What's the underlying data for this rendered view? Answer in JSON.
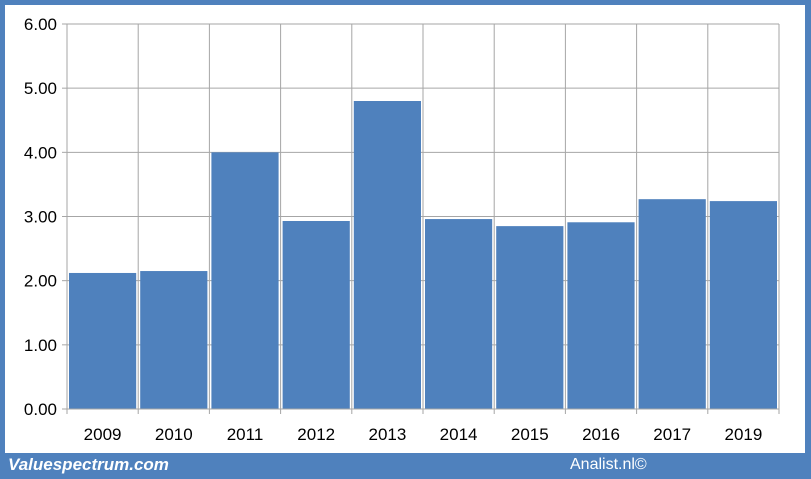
{
  "footer": {
    "left_text": "Valuespectrum.com",
    "right_text": "Analist.nl©"
  },
  "colors": {
    "frame": "#4f81bd",
    "bar": "#4f81bd",
    "grid": "#a6a6a6"
  },
  "chart_data": {
    "type": "bar",
    "title": "",
    "xlabel": "",
    "ylabel": "",
    "categories": [
      "2009",
      "2010",
      "2011",
      "2012",
      "2013",
      "2014",
      "2015",
      "2016",
      "2017",
      "2019"
    ],
    "values": [
      2.12,
      2.15,
      4.0,
      2.93,
      4.8,
      2.96,
      2.85,
      2.91,
      3.27,
      3.24
    ],
    "ylim": [
      0,
      6
    ],
    "yticks": [
      "0.00",
      "1.00",
      "2.00",
      "3.00",
      "4.00",
      "5.00",
      "6.00"
    ],
    "grid": true,
    "legend": "none"
  }
}
